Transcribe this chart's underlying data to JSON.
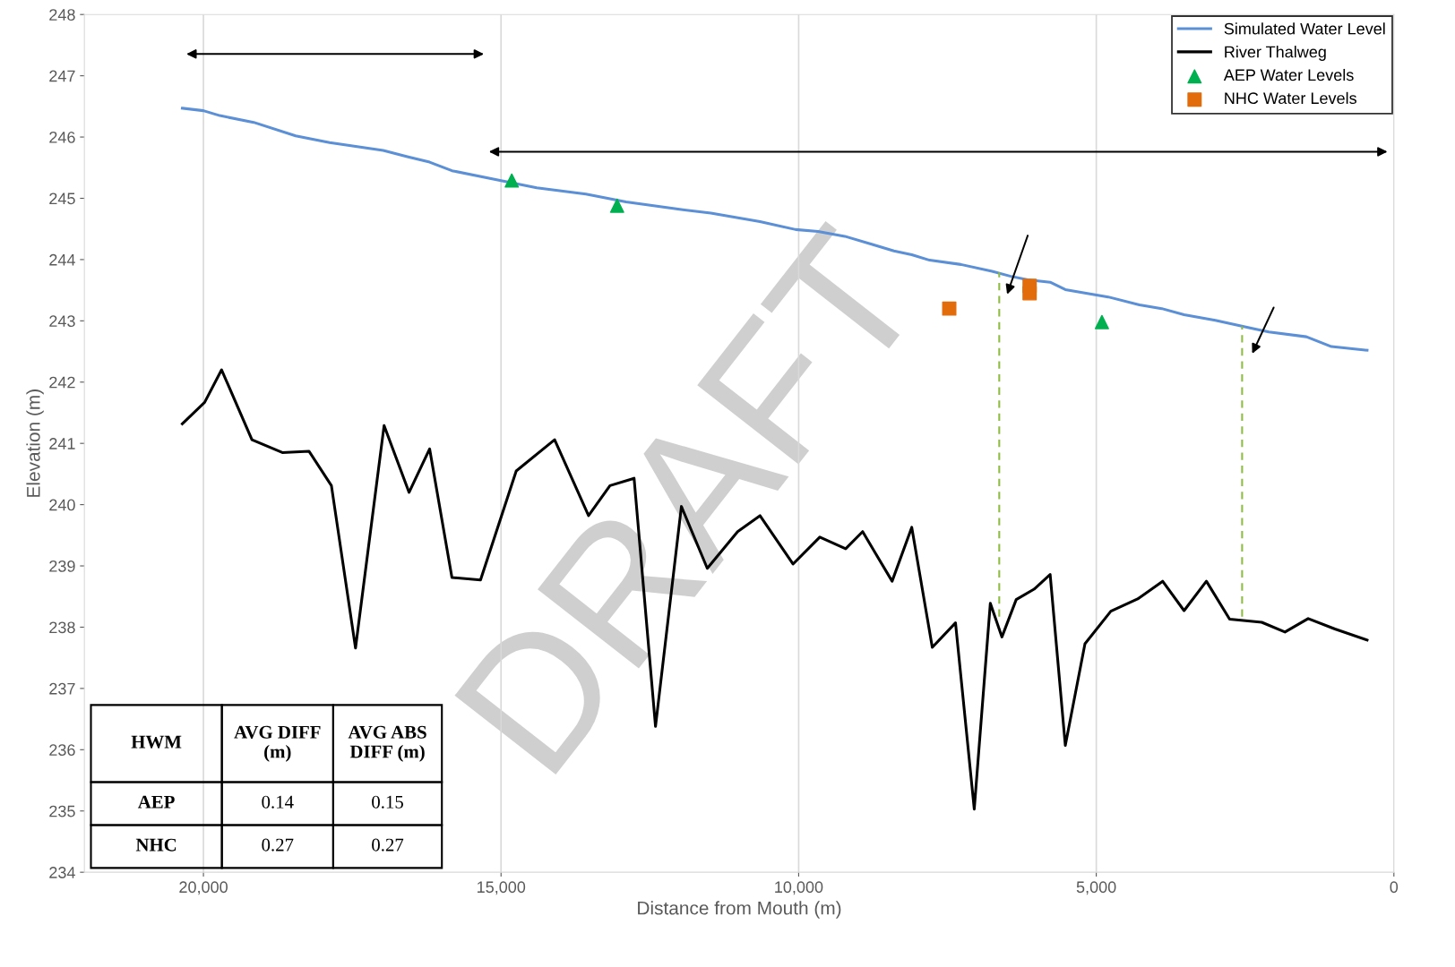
{
  "chart_data": {
    "type": "line",
    "xlabel": "Distance from Mouth (m)",
    "ylabel": "Elevation (m)",
    "xlim": [
      22000,
      0
    ],
    "ylim": [
      234,
      248
    ],
    "xticks": [
      {
        "value": 20000,
        "label": "20,000"
      },
      {
        "value": 15000,
        "label": "15,000"
      },
      {
        "value": 10000,
        "label": "10,000"
      },
      {
        "value": 5000,
        "label": "5,000"
      },
      0
    ],
    "yticks": [
      234,
      235,
      236,
      237,
      238,
      239,
      240,
      241,
      242,
      243,
      244,
      245,
      246,
      247,
      248
    ],
    "grid": "x",
    "legend": "top right",
    "series": [
      {
        "name": "Simulated Water Level",
        "color": "#5b8fd6",
        "marker": "none",
        "line_style": "solid",
        "x": [
          20355,
          20000,
          19725,
          19155,
          18450,
          17880,
          16980,
          16575,
          16200,
          15825,
          15000,
          14400,
          13575,
          12900,
          12000,
          11475,
          10650,
          10050,
          9675,
          9225,
          8775,
          8400,
          8100,
          7800,
          7275,
          6750,
          6450,
          6150,
          5775,
          5520,
          4800,
          4275,
          3900,
          3525,
          3000,
          2400,
          2100,
          1470,
          1050,
          450
        ],
        "values": [
          246.47,
          246.43,
          246.35,
          246.24,
          246.02,
          245.91,
          245.78,
          245.68,
          245.59,
          245.45,
          245.29,
          245.17,
          245.07,
          244.94,
          244.82,
          244.76,
          244.62,
          244.49,
          244.46,
          244.38,
          244.25,
          244.14,
          244.08,
          243.99,
          243.92,
          243.81,
          243.73,
          243.67,
          243.63,
          243.51,
          243.39,
          243.26,
          243.2,
          243.1,
          243.01,
          242.88,
          242.82,
          242.74,
          242.58,
          242.52
        ]
      },
      {
        "name": "River Thalweg",
        "color": "#000000",
        "marker": "none",
        "line_style": "solid",
        "x": [
          20355,
          19980,
          19695,
          19185,
          18675,
          18225,
          17850,
          17445,
          16965,
          16545,
          16200,
          15825,
          15345,
          14745,
          14100,
          13530,
          13170,
          12765,
          12405,
          11970,
          11535,
          11025,
          10650,
          10095,
          9645,
          9210,
          8925,
          8700,
          8430,
          8100,
          7755,
          7365,
          7050,
          6780,
          6585,
          6345,
          6045,
          5775,
          5520,
          5190,
          4755,
          4305,
          3885,
          3525,
          3150,
          2760,
          2220,
          1830,
          1440,
          990,
          450
        ],
        "values": [
          241.32,
          241.67,
          242.2,
          241.06,
          240.85,
          240.87,
          240.31,
          237.66,
          241.29,
          240.2,
          240.91,
          238.81,
          238.77,
          240.55,
          241.06,
          239.82,
          240.31,
          240.43,
          236.38,
          239.97,
          238.96,
          239.56,
          239.82,
          239.03,
          239.47,
          239.28,
          239.56,
          239.19,
          238.75,
          239.63,
          237.67,
          238.07,
          235.03,
          238.39,
          237.84,
          238.45,
          238.62,
          238.86,
          236.07,
          237.73,
          238.26,
          238.46,
          238.75,
          238.27,
          238.75,
          238.13,
          238.08,
          237.92,
          238.14,
          237.97,
          237.79
        ]
      },
      {
        "name": "AEP Water Levels",
        "type": "scatter",
        "color": "#00b050",
        "marker": "triangle",
        "x": [
          14820,
          13050,
          4905
        ],
        "values": [
          245.29,
          244.88,
          242.98
        ]
      },
      {
        "name": "NHC Water Levels",
        "type": "scatter",
        "color": "#e36c0a",
        "marker": "square",
        "x": [
          7470,
          6120,
          6120
        ],
        "values": [
          243.2,
          243.57,
          243.45
        ]
      },
      {
        "color": "#8fbc45",
        "marker": "none",
        "line_style": "dashed",
        "x": [
          6630,
          6630
        ],
        "values": [
          238.17,
          243.79
        ]
      },
      {
        "color": "#8fbc45",
        "marker": "none",
        "line_style": "dashed",
        "x": [
          2550,
          2550
        ],
        "values": [
          238.17,
          242.91
        ]
      }
    ],
    "annotations": [
      "DRAFT",
      "HWM",
      "AVG DIFF (m)",
      "AVG ABS DIFF (m)",
      "AEP",
      "0.14",
      "0.15",
      "NHC",
      "0.27",
      "0.27"
    ]
  }
}
